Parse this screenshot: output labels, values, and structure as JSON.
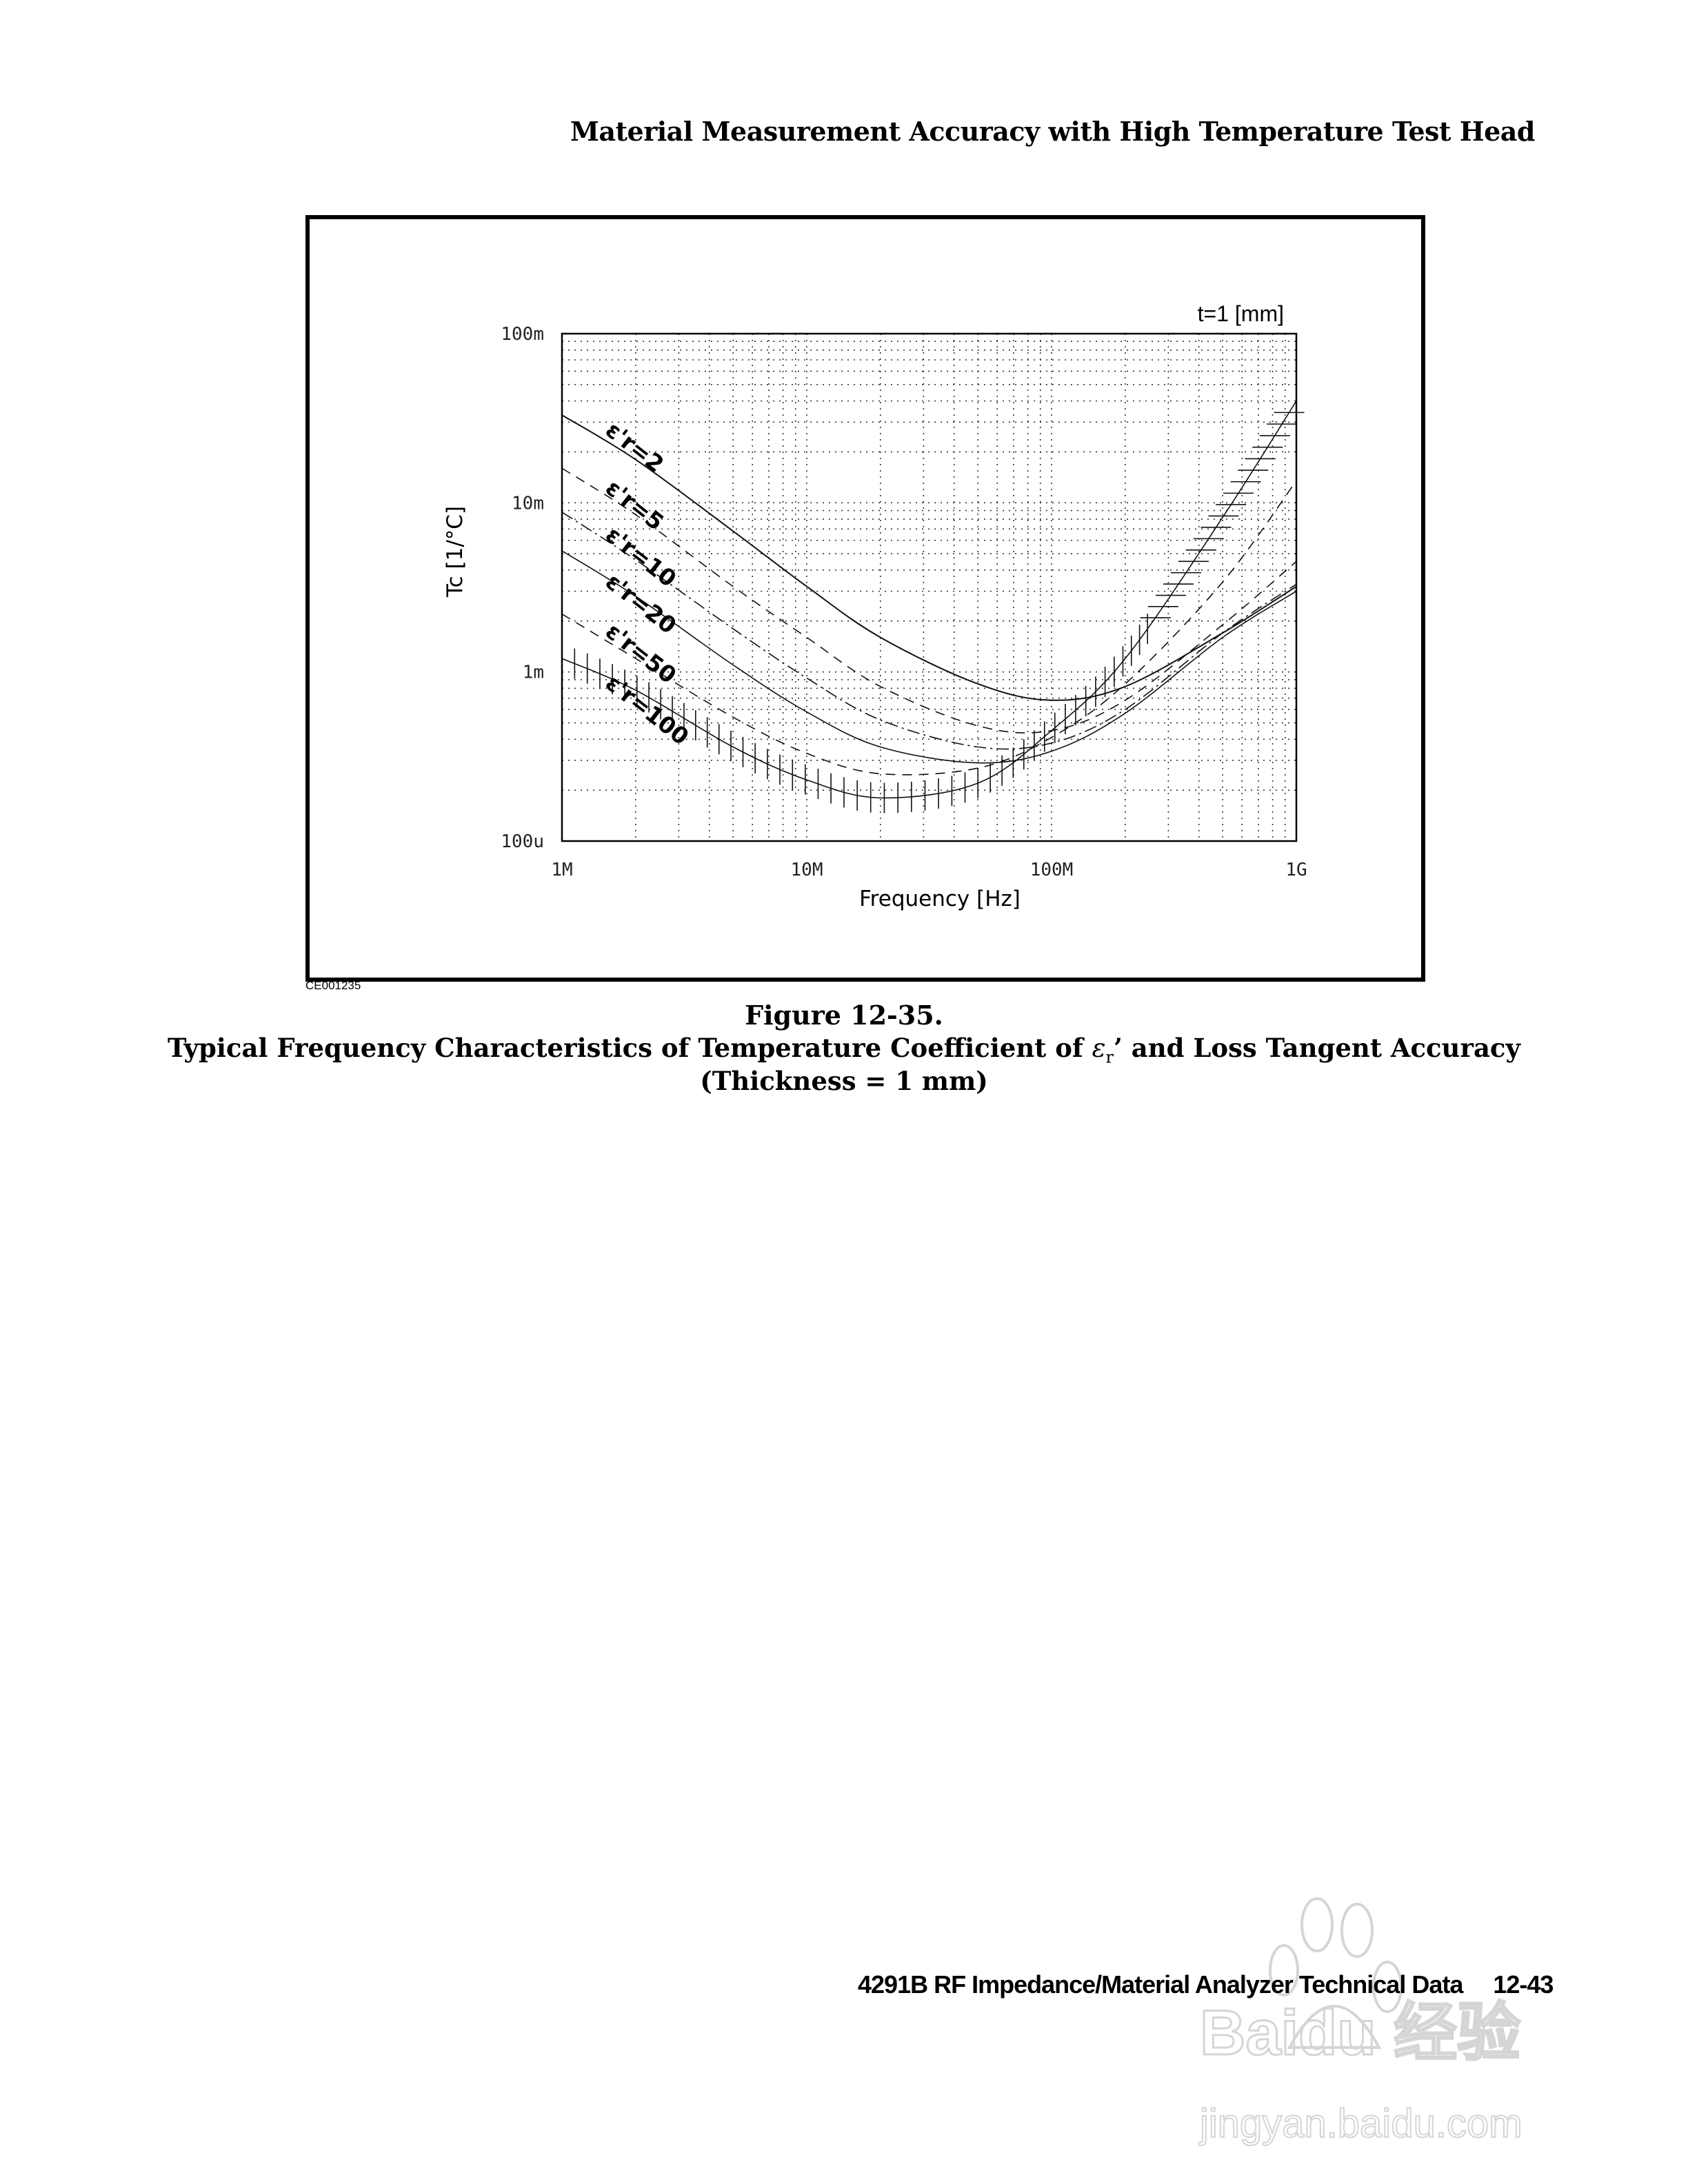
{
  "page": {
    "header": "Material Measurement Accuracy with High Temperature Test Head",
    "figure_id": "CE001235",
    "caption_number": "Figure 12-35.",
    "caption_title_pre": "Typical Frequency Characteristics of Temperature Coefficient of ",
    "caption_symbol": "ε",
    "caption_sub": "r",
    "caption_title_post": "’ and Loss Tangent Accuracy",
    "caption_subtitle": "(Thickness = 1 mm)",
    "footer_text": "4291B RF Impedance/Material Analyzer Technical Data",
    "footer_page": "12-43",
    "watermark_text": "Baidu 经验",
    "watermark_url": "jingyan.baidu.com"
  },
  "chart_data": {
    "type": "line",
    "title": "t=1 [mm]",
    "xlabel": "Frequency [Hz]",
    "ylabel": "Tc [1/°C]",
    "xscale": "log",
    "yscale": "log",
    "xlim": [
      1000000,
      1000000000
    ],
    "ylim": [
      0.0001,
      0.1
    ],
    "x_tick_labels": [
      "1M",
      "10M",
      "100M",
      "1G"
    ],
    "y_tick_labels": [
      "100m",
      "10m",
      "1m",
      "100u"
    ],
    "grid": true,
    "legend_position": "inline labels along curves (upper-left)",
    "x": [
      1000000,
      2000000,
      5000000,
      10000000,
      20000000,
      50000000,
      100000000,
      200000000,
      500000000,
      1000000000
    ],
    "series": [
      {
        "name": "ε'r=2",
        "style": "solid",
        "values": [
          0.033,
          0.018,
          0.0068,
          0.0032,
          0.0016,
          0.00085,
          0.00068,
          0.00082,
          0.0017,
          0.0032
        ]
      },
      {
        "name": "ε'r=5",
        "style": "dashed",
        "values": [
          0.016,
          0.0085,
          0.0032,
          0.0016,
          0.00082,
          0.00048,
          0.00045,
          0.00068,
          0.0019,
          0.0045
        ]
      },
      {
        "name": "ε'r=10",
        "style": "dash-dot",
        "values": [
          0.0088,
          0.0046,
          0.0018,
          0.00092,
          0.00052,
          0.00036,
          0.00038,
          0.0006,
          0.0017,
          0.0033
        ]
      },
      {
        "name": "ε'r=20",
        "style": "solid-thin",
        "values": [
          0.0052,
          0.0028,
          0.0011,
          0.00058,
          0.00036,
          0.00029,
          0.00034,
          0.00057,
          0.0016,
          0.003
        ]
      },
      {
        "name": "ε'r=50",
        "style": "dashed",
        "values": [
          0.0022,
          0.0012,
          0.00054,
          0.00033,
          0.00025,
          0.00027,
          0.00041,
          0.00085,
          0.0034,
          0.0135
        ]
      },
      {
        "name": "ε'r=100",
        "style": "hatched",
        "values": [
          0.0012,
          0.00078,
          0.00036,
          0.00023,
          0.00018,
          0.00022,
          0.00045,
          0.0012,
          0.0082,
          0.04
        ]
      }
    ],
    "annotations": [
      "t=1 [mm]"
    ]
  }
}
